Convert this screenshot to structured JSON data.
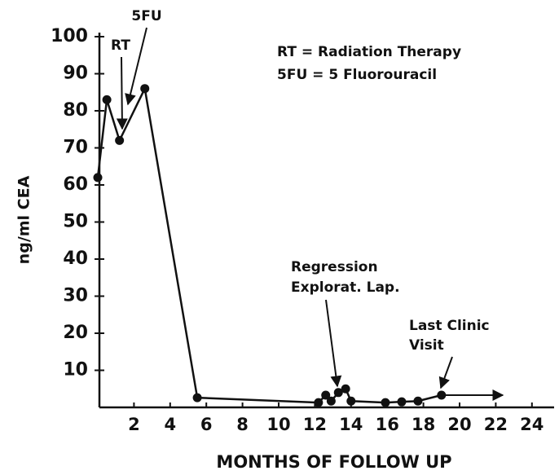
{
  "chart_data": {
    "type": "line",
    "x_label": "MONTHS OF FOLLOW UP",
    "y_label": "ng/ml CEA",
    "legend_notes": [
      "RT = Radiation Therapy",
      "5FU = 5 Fluorouracil"
    ],
    "annotations": [
      "RT",
      "5FU",
      "Regression",
      "Explorat. Lap.",
      "Last Clinic",
      "Visit"
    ],
    "x": [
      0,
      0.5,
      1.2,
      2.6,
      5.5,
      12.2,
      12.6,
      12.9,
      13.3,
      13.7,
      14,
      15.9,
      16.8,
      17.7,
      19
    ],
    "series": [
      {
        "name": "CEA",
        "color": "#111111",
        "values": [
          62,
          83,
          72,
          86,
          2.6,
          1.3,
          3.3,
          1.7,
          4,
          5,
          1.7,
          1.3,
          1.5,
          1.7,
          3.3
        ]
      }
    ],
    "xlim": [
      0,
      25
    ],
    "xticks": [
      2,
      4,
      6,
      8,
      10,
      12,
      14,
      16,
      18,
      20,
      22,
      24
    ],
    "ylim": [
      0,
      100
    ],
    "yticks": [
      10,
      20,
      30,
      40,
      50,
      60,
      70,
      80,
      90,
      100
    ]
  }
}
